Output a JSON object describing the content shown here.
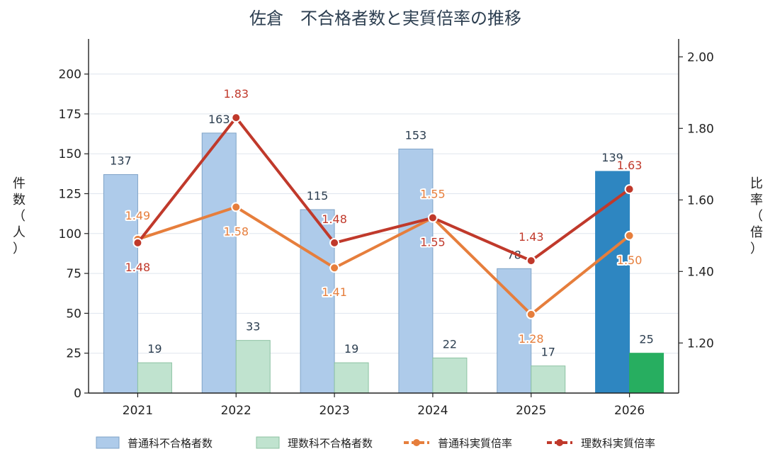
{
  "chart_data": {
    "type": "bar",
    "title": "佐倉　不合格者数と実質倍率の推移",
    "categories": [
      "2021",
      "2022",
      "2023",
      "2024",
      "2025",
      "2026"
    ],
    "ylabel_left": "件数（人）",
    "ylabel_right": "比率（倍）",
    "ylim_left": [
      0,
      222
    ],
    "ylim_right": [
      1.06,
      2.05
    ],
    "yticks_left": [
      0,
      25,
      50,
      75,
      100,
      125,
      150,
      175,
      200
    ],
    "yticks_right": [
      "1.20",
      "1.40",
      "1.60",
      "1.80",
      "2.00"
    ],
    "grid": true,
    "legend_position": "bottom",
    "bar_series": [
      {
        "name": "普通科不合格者数",
        "values": [
          137,
          163,
          115,
          153,
          78,
          139
        ],
        "labels": [
          "137",
          "163",
          "115",
          "153",
          "78",
          "139"
        ],
        "color": "#aecbea",
        "highlight_color": "#2e86c1"
      },
      {
        "name": "理数科不合格者数",
        "values": [
          19,
          33,
          19,
          22,
          17,
          25
        ],
        "labels": [
          "19",
          "33",
          "19",
          "22",
          "17",
          "25"
        ],
        "color": "#c0e3cf",
        "highlight_color": "#27ae60"
      }
    ],
    "line_series": [
      {
        "name": "普通科実質倍率",
        "values": [
          1.49,
          1.58,
          1.41,
          1.55,
          1.28,
          1.5
        ],
        "labels": [
          "1.49",
          "1.58",
          "1.41",
          "1.55",
          "1.28",
          "1.50"
        ],
        "color": "#e67e3c"
      },
      {
        "name": "理数科実質倍率",
        "values": [
          1.48,
          1.83,
          1.48,
          1.55,
          1.43,
          1.63
        ],
        "labels": [
          "1.48",
          "1.83",
          "1.48",
          "1.55",
          "1.43",
          "1.63"
        ],
        "color": "#c0392b"
      }
    ]
  }
}
